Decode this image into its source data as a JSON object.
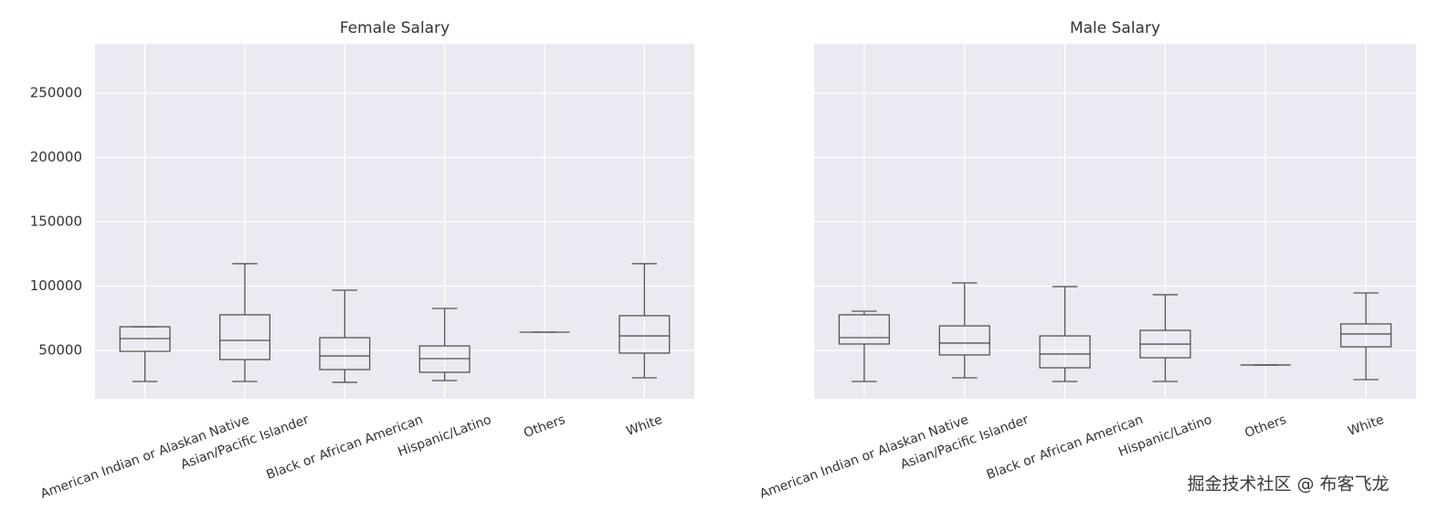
{
  "chart_data": [
    {
      "type": "box",
      "title": "Female Salary",
      "categories": [
        "American Indian or Alaskan Native",
        "Asian/Pacific Islander",
        "Black or African American",
        "Hispanic/Latino",
        "Others",
        "White"
      ],
      "boxes": [
        {
          "low": 25900,
          "q1": 49300,
          "median": 59200,
          "q3": 68400,
          "high": 68400
        },
        {
          "low": 25900,
          "q1": 42900,
          "median": 57800,
          "q3": 77700,
          "high": 117400
        },
        {
          "low": 25200,
          "q1": 35100,
          "median": 45700,
          "q3": 59900,
          "high": 96800
        },
        {
          "low": 26600,
          "q1": 33000,
          "median": 43600,
          "q3": 53500,
          "high": 82600
        },
        {
          "low": 64200,
          "q1": 64200,
          "median": 64200,
          "q3": 64200,
          "high": 64200
        },
        {
          "low": 28700,
          "q1": 47900,
          "median": 61300,
          "q3": 77000,
          "high": 117400
        }
      ],
      "color": "#555555",
      "ylim": [
        12400,
        288300
      ],
      "yticks": [
        50000,
        100000,
        150000,
        200000,
        250000
      ],
      "show_ytick_labels": true,
      "grid": true
    },
    {
      "type": "box",
      "title": "Male Salary",
      "categories": [
        "American Indian or Alaskan Native",
        "Asian/Pacific Islander",
        "Black or African American",
        "Hispanic/Latino",
        "Others",
        "White"
      ],
      "boxes": [
        {
          "low": 25900,
          "q1": 55000,
          "median": 59900,
          "q3": 77700,
          "high": 80500
        },
        {
          "low": 28700,
          "q1": 46500,
          "median": 55700,
          "q3": 69100,
          "high": 102500
        },
        {
          "low": 25900,
          "q1": 36500,
          "median": 47200,
          "q3": 61300,
          "high": 99600
        },
        {
          "low": 25900,
          "q1": 44300,
          "median": 54900,
          "q3": 65600,
          "high": 93300
        },
        {
          "low": 38700,
          "q1": 38700,
          "median": 38700,
          "q3": 38700,
          "high": 38700
        },
        {
          "low": 27300,
          "q1": 52800,
          "median": 62800,
          "q3": 70600,
          "high": 94700
        }
      ],
      "color": "#555555",
      "ylim": [
        12400,
        288300
      ],
      "yticks": [
        50000,
        100000,
        150000,
        200000,
        250000
      ],
      "show_ytick_labels": false,
      "grid": true
    }
  ],
  "watermark": "掘金技术社区 @ 布客飞龙"
}
